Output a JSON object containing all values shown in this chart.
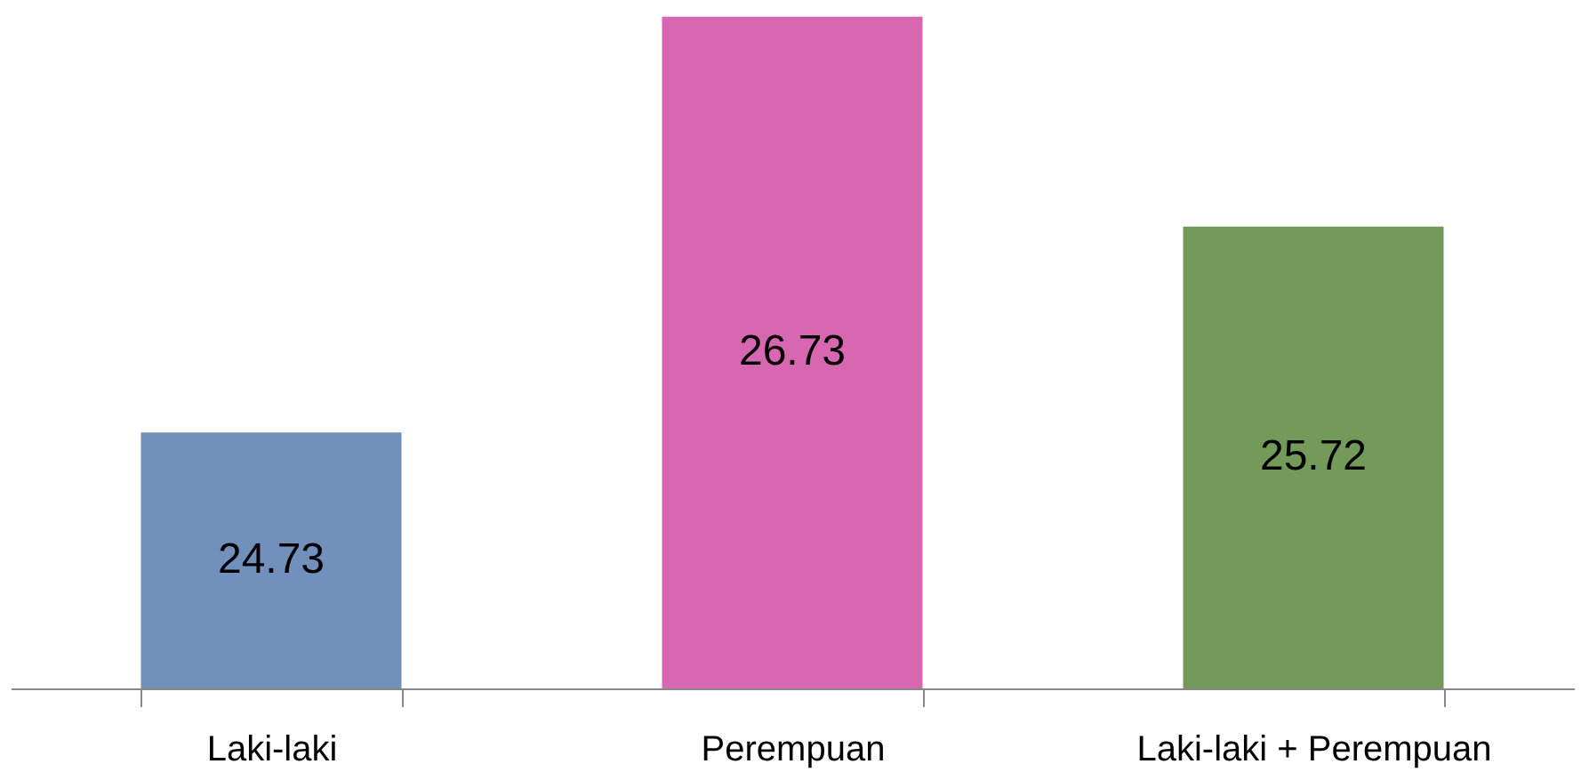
{
  "chart_data": {
    "type": "bar",
    "categories": [
      "Laki-laki",
      "Perempuan",
      "Laki-laki + Perempuan"
    ],
    "values": [
      24.73,
      26.73,
      25.72
    ],
    "colors": [
      "#7190bb",
      "#d667b0",
      "#739a58"
    ],
    "ylim": [
      23.5,
      26.75
    ],
    "data_labels": true,
    "grid": false
  }
}
